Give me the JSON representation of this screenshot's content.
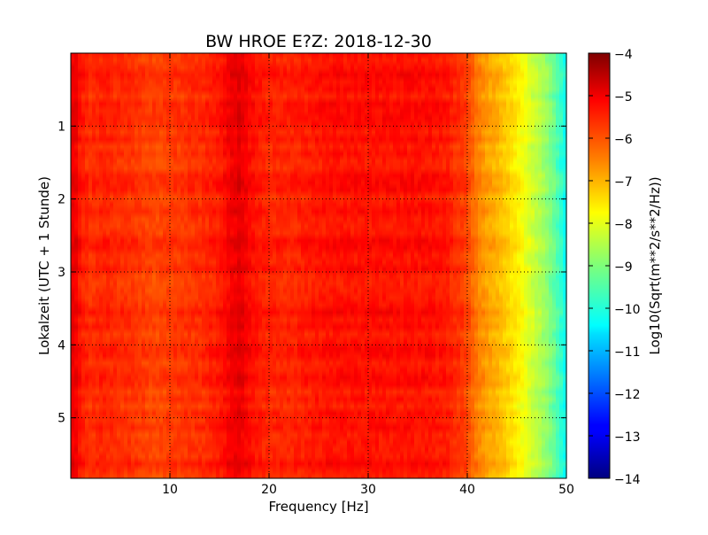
{
  "chart_data": {
    "type": "heatmap",
    "title": "BW HROE E?Z: 2018-12-30",
    "xlabel": "Frequency [Hz]",
    "ylabel": "Lokalzeit (UTC + 1 Stunde)",
    "xlim": [
      0,
      50
    ],
    "ylim": [
      0,
      5.83
    ],
    "y_inverted": true,
    "grid": true,
    "x_ticks": [
      10,
      20,
      30,
      40,
      50
    ],
    "x_tick_labels": [
      "10",
      "20",
      "30",
      "40",
      "50"
    ],
    "y_ticks": [
      1,
      2,
      3,
      4,
      5
    ],
    "y_tick_labels": [
      "1",
      "2",
      "3",
      "4",
      "5"
    ],
    "colormap": "jet",
    "colorbar": {
      "label": "Log10(Sqrt(m**2/s**2/Hz))",
      "range": [
        -14,
        -4
      ],
      "ticks": [
        -4,
        -5,
        -6,
        -7,
        -8,
        -9,
        -10,
        -11,
        -12,
        -13,
        -14
      ],
      "tick_labels": [
        "−4",
        "−5",
        "−6",
        "−7",
        "−8",
        "−9",
        "−10",
        "−11",
        "−12",
        "−13",
        "−14"
      ]
    },
    "frequency_profile": {
      "frequencies": [
        0.5,
        1,
        2,
        3,
        4,
        5,
        6,
        7,
        8,
        9,
        10,
        11,
        12,
        13,
        14,
        15,
        16,
        17,
        18,
        19,
        20,
        22,
        24,
        26,
        28,
        30,
        32,
        34,
        36,
        38,
        40,
        41,
        42,
        43,
        44,
        45,
        46,
        47,
        48,
        49,
        50
      ],
      "values": [
        -5.1,
        -5.5,
        -5.7,
        -5.6,
        -5.6,
        -5.7,
        -5.7,
        -5.8,
        -5.9,
        -5.9,
        -5.8,
        -5.8,
        -5.7,
        -5.7,
        -5.6,
        -5.5,
        -5.2,
        -5.0,
        -5.3,
        -5.5,
        -5.6,
        -5.6,
        -5.5,
        -5.4,
        -5.4,
        -5.4,
        -5.4,
        -5.4,
        -5.4,
        -5.5,
        -5.9,
        -6.5,
        -6.8,
        -7.0,
        -7.3,
        -7.6,
        -8.0,
        -8.4,
        -8.8,
        -9.4,
        -10.2
      ]
    }
  }
}
